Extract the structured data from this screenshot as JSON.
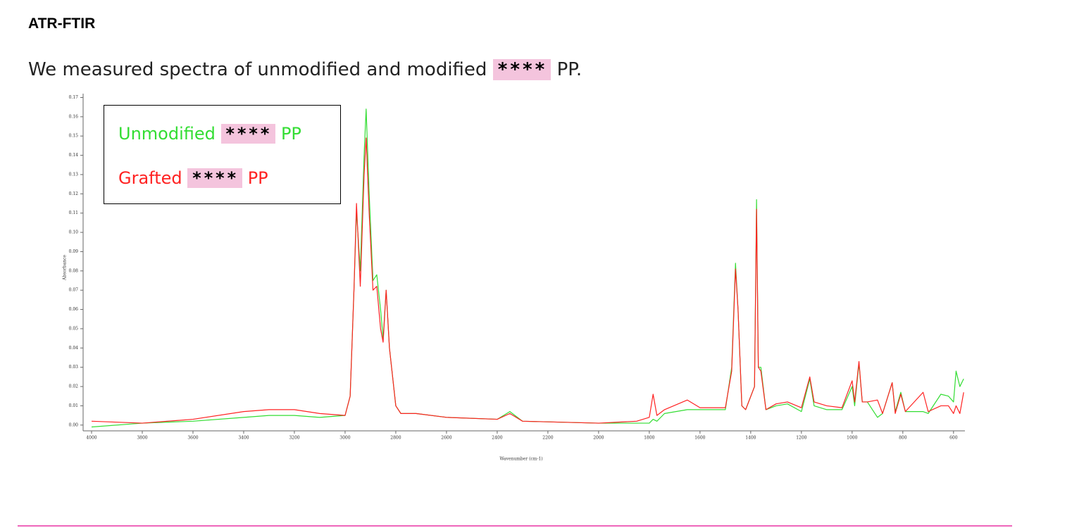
{
  "header": {
    "title": "ATR-FTIR"
  },
  "paragraph": {
    "text_before": "We measured spectra of unmodified and modified",
    "redacted": "****",
    "text_after": "PP."
  },
  "chart_data": {
    "type": "line",
    "xlabel": "Wavenumber (cm-1)",
    "ylabel": "Absorbance",
    "x": [
      4000,
      3800,
      3600,
      3400,
      3300,
      3200,
      3100,
      3000,
      2980,
      2965,
      2955,
      2940,
      2925,
      2917,
      2905,
      2890,
      2875,
      2860,
      2850,
      2838,
      2825,
      2800,
      2780,
      2720,
      2600,
      2400,
      2350,
      2300,
      2000,
      1850,
      1800,
      1785,
      1770,
      1740,
      1650,
      1600,
      1500,
      1475,
      1460,
      1450,
      1435,
      1420,
      1385,
      1377,
      1370,
      1360,
      1340,
      1300,
      1255,
      1200,
      1167,
      1150,
      1100,
      1040,
      1000,
      990,
      973,
      960,
      940,
      900,
      880,
      842,
      830,
      808,
      790,
      720,
      700,
      650,
      620,
      600,
      590,
      575,
      560
    ],
    "series": [
      {
        "name": "Unmodified **** PP",
        "color": "#33dd33",
        "values": [
          -0.001,
          0.001,
          0.002,
          0.004,
          0.005,
          0.005,
          0.004,
          0.005,
          0.015,
          0.07,
          0.111,
          0.08,
          0.14,
          0.164,
          0.12,
          0.075,
          0.078,
          0.06,
          0.045,
          0.07,
          0.04,
          0.01,
          0.006,
          0.006,
          0.004,
          0.003,
          0.007,
          0.002,
          0.001,
          0.001,
          0.001,
          0.003,
          0.002,
          0.006,
          0.008,
          0.008,
          0.008,
          0.03,
          0.084,
          0.06,
          0.01,
          0.008,
          0.02,
          0.117,
          0.03,
          0.03,
          0.008,
          0.01,
          0.011,
          0.007,
          0.024,
          0.01,
          0.008,
          0.008,
          0.02,
          0.01,
          0.032,
          0.012,
          0.012,
          0.004,
          0.006,
          0.022,
          0.007,
          0.017,
          0.007,
          0.007,
          0.006,
          0.016,
          0.015,
          0.012,
          0.028,
          0.02,
          0.024
        ]
      },
      {
        "name": "Grafted **** PP",
        "color": "#ff2222",
        "values": [
          0.002,
          0.001,
          0.003,
          0.007,
          0.008,
          0.008,
          0.006,
          0.005,
          0.015,
          0.07,
          0.115,
          0.072,
          0.13,
          0.149,
          0.11,
          0.07,
          0.072,
          0.05,
          0.043,
          0.07,
          0.04,
          0.01,
          0.006,
          0.006,
          0.004,
          0.003,
          0.006,
          0.002,
          0.001,
          0.002,
          0.004,
          0.016,
          0.005,
          0.008,
          0.013,
          0.009,
          0.009,
          0.028,
          0.081,
          0.06,
          0.01,
          0.008,
          0.02,
          0.112,
          0.03,
          0.028,
          0.008,
          0.011,
          0.012,
          0.009,
          0.025,
          0.012,
          0.01,
          0.009,
          0.023,
          0.012,
          0.033,
          0.012,
          0.012,
          0.013,
          0.006,
          0.022,
          0.006,
          0.016,
          0.007,
          0.017,
          0.007,
          0.01,
          0.01,
          0.006,
          0.01,
          0.006,
          0.017
        ]
      }
    ],
    "xlim": [
      4000,
      555
    ],
    "xticks": [
      4000,
      3800,
      3600,
      3400,
      3200,
      3000,
      2800,
      2600,
      2400,
      2200,
      2000,
      1800,
      1600,
      1400,
      1200,
      1000,
      800,
      600
    ],
    "ylim": [
      -0.003,
      0.172
    ],
    "yticks": [
      {
        "value": 0,
        "label": "0.00"
      },
      {
        "value": 0.01,
        "label": "0.01"
      },
      {
        "value": 0.02,
        "label": "0.02"
      },
      {
        "value": 0.03,
        "label": "0.03"
      },
      {
        "value": 0.04,
        "label": "0.04"
      },
      {
        "value": 0.05,
        "label": "0.05"
      },
      {
        "value": 0.06,
        "label": "0.06"
      },
      {
        "value": 0.07,
        "label": "0.07"
      },
      {
        "value": 0.08,
        "label": "0.08"
      },
      {
        "value": 0.09,
        "label": "0.09"
      },
      {
        "value": 0.1,
        "label": "0.10"
      },
      {
        "value": 0.11,
        "label": "0.11"
      },
      {
        "value": 0.12,
        "label": "0.12"
      },
      {
        "value": 0.13,
        "label": "0.13"
      },
      {
        "value": 0.14,
        "label": "0.14"
      },
      {
        "value": 0.15,
        "label": "0.15"
      },
      {
        "value": 0.16,
        "label": "0.16"
      },
      {
        "value": 0.17,
        "label": "0.17"
      }
    ]
  }
}
